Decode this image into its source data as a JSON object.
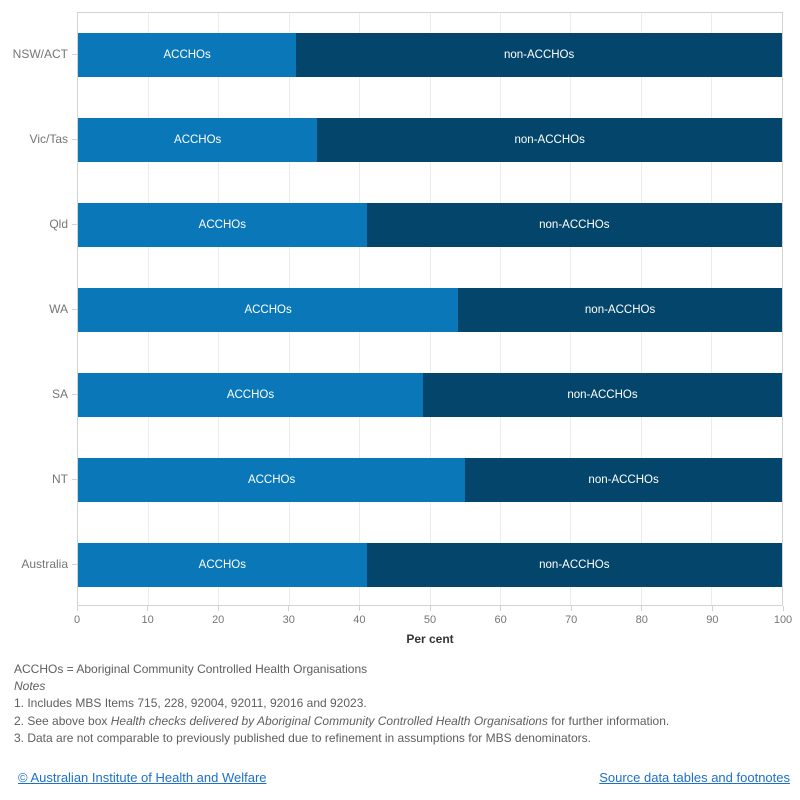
{
  "chart_data": {
    "type": "bar",
    "orientation": "horizontal",
    "stacked": true,
    "categories": [
      "NSW/ACT",
      "Vic/Tas",
      "Qld",
      "WA",
      "SA",
      "NT",
      "Australia"
    ],
    "series": [
      {
        "name": "ACCHOs",
        "color": "#0a78b8",
        "values": [
          31,
          34,
          41,
          54,
          49,
          55,
          41
        ]
      },
      {
        "name": "non-ACCHOs",
        "color": "#04466b",
        "values": [
          69,
          66,
          59,
          46,
          51,
          45,
          59
        ]
      }
    ],
    "xlabel": "Per cent",
    "xlim": [
      0,
      100
    ],
    "xticks": [
      0,
      10,
      20,
      30,
      40,
      50,
      60,
      70,
      80,
      90,
      100
    ],
    "grid": "vertical, light gray",
    "legend": "none (segment labels drawn inside bars)",
    "bar_label_source": "series name"
  },
  "footnotes": {
    "abbreviation": "ACCHOs = Aboriginal Community Controlled Health Organisations",
    "notes_label": "Notes",
    "note1": "1. Includes MBS Items 715, 228, 92004, 92011, 92016 and 92023.",
    "note2_prefix": "2. See above box ",
    "note2_italic": "Health checks delivered by Aboriginal Community Controlled Health Organisations",
    "note2_suffix": " for further information.",
    "note3": "3. Data are not comparable to previously published due to refinement in assumptions for MBS denominators."
  },
  "footer": {
    "copyright_link": "© Australian Institute of Health and Welfare",
    "source_link": "Source data tables and footnotes",
    "link_color": "#1c70c9"
  },
  "colors": {
    "acchos": "#0a78b8",
    "non_acchos": "#04466b",
    "grid": "#ececec",
    "axis_border": "#d3d3d3",
    "tick_label": "#757575",
    "footnote_text": "#5e5e5e"
  }
}
